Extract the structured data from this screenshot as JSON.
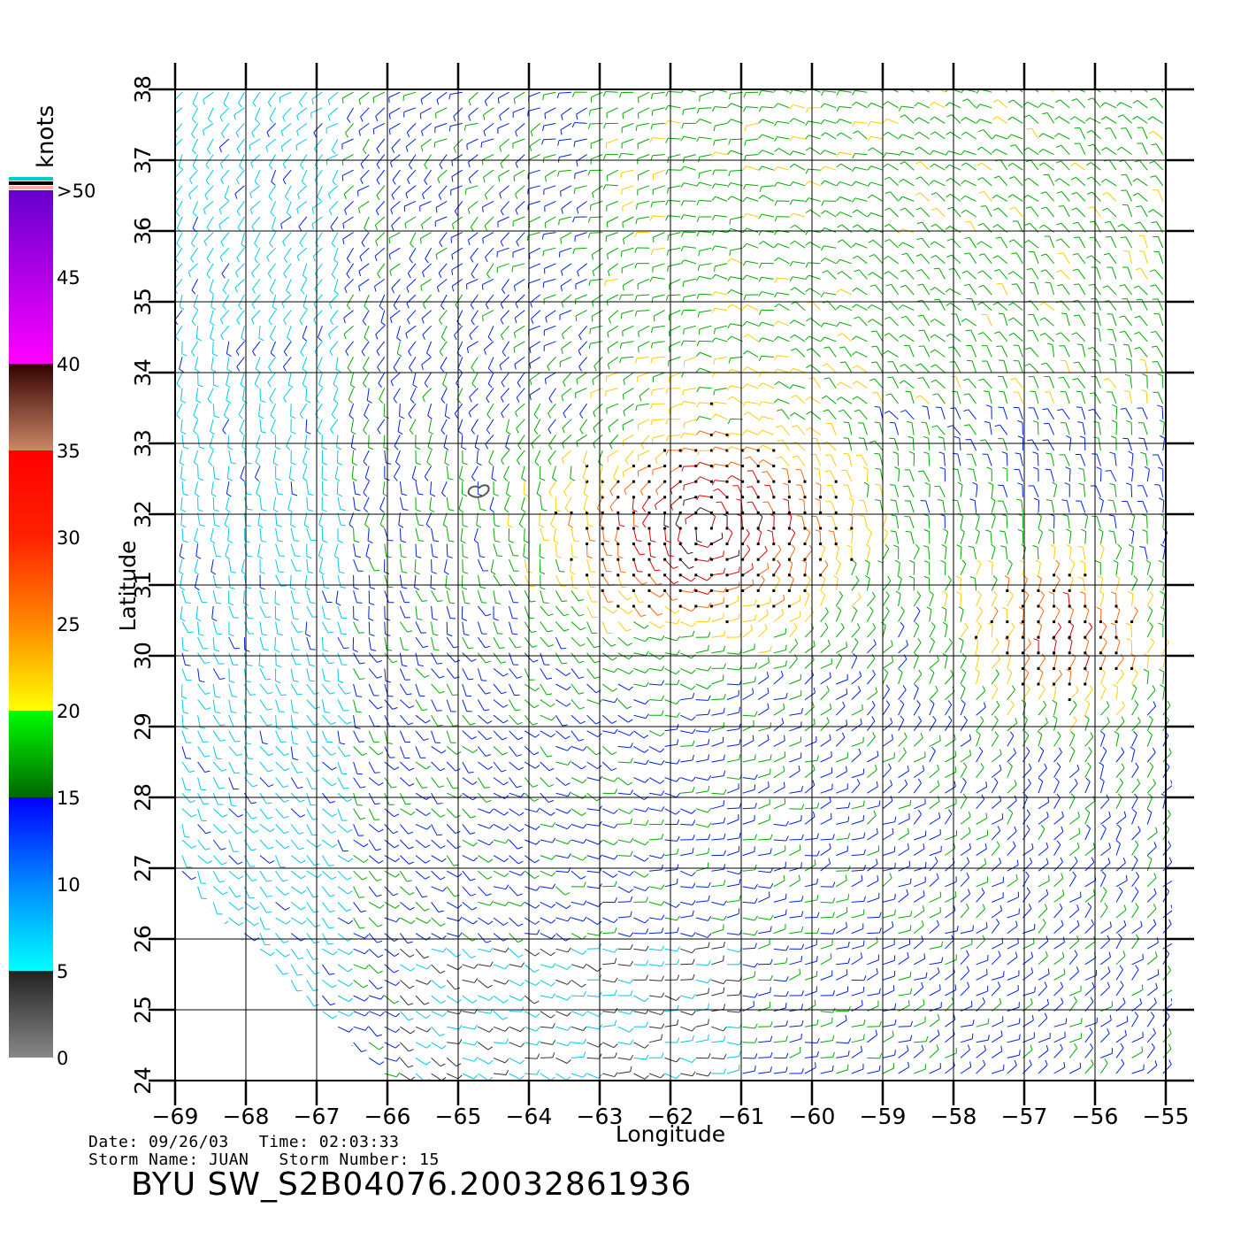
{
  "map": {
    "lon_range": [
      -69,
      -55
    ],
    "lat_range": [
      24,
      38
    ],
    "lon_ticks": [
      "−69",
      "−68",
      "−67",
      "−66",
      "−65",
      "−64",
      "−63",
      "−62",
      "−61",
      "−60",
      "−59",
      "−58",
      "−57",
      "−56",
      "−55"
    ],
    "lat_ticks": [
      "24",
      "25",
      "26",
      "27",
      "28",
      "29",
      "30",
      "31",
      "32",
      "33",
      "34",
      "35",
      "36",
      "37",
      "38"
    ],
    "xlabel": "Longitude",
    "ylabel": "Latitude",
    "grid": true,
    "features": [
      "wind-barbs",
      "bermuda-island"
    ]
  },
  "colorbar": {
    "title": "knots",
    "labels": [
      "0",
      "5",
      "10",
      "15",
      "20",
      "25",
      "30",
      "35",
      "40",
      "45",
      ">50"
    ],
    "stops": [
      {
        "value": 0,
        "color": "#888888"
      },
      {
        "value": 5,
        "color": "#222222"
      },
      {
        "value": 5,
        "color": "#00ffff"
      },
      {
        "value": 10,
        "color": "#0088ff"
      },
      {
        "value": 15,
        "color": "#0000ff"
      },
      {
        "value": 15,
        "color": "#006600"
      },
      {
        "value": 20,
        "color": "#00ff00"
      },
      {
        "value": 20,
        "color": "#ffff00"
      },
      {
        "value": 25,
        "color": "#ff8800"
      },
      {
        "value": 30,
        "color": "#ff2200"
      },
      {
        "value": 35,
        "color": "#ff0000"
      },
      {
        "value": 35,
        "color": "#cc8866"
      },
      {
        "value": 40,
        "color": "#330000"
      },
      {
        "value": 40,
        "color": "#ff00ff"
      },
      {
        "value": 50,
        "color": "#6600cc"
      }
    ]
  },
  "info": {
    "date_line": "Date: 09/26/03   Time: 02:03:33",
    "storm_line": "Storm Name: JUAN   Storm Number: 15",
    "plot_id": "BYU SW_S2B04076.20032861936"
  }
}
